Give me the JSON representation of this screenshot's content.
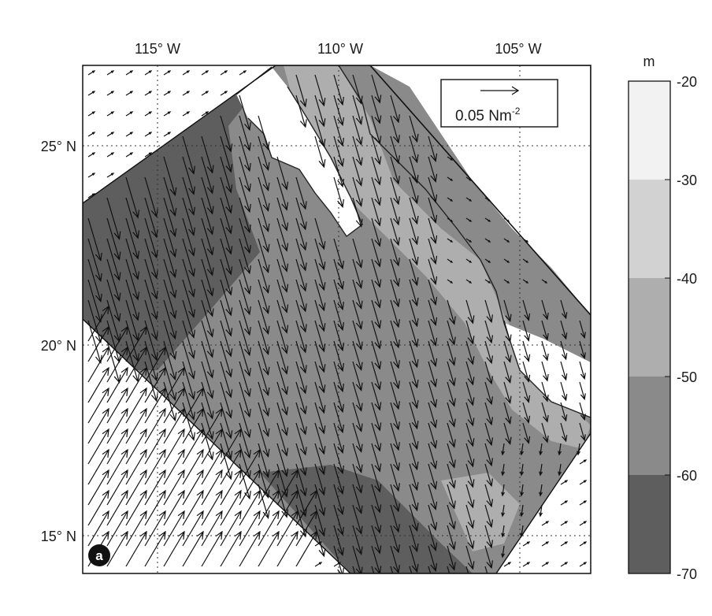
{
  "axes": {
    "lon_labels": [
      "115° W",
      "110° W",
      "105° W"
    ],
    "lat_labels": [
      "25° N",
      "20° N",
      "15° N"
    ]
  },
  "panel_label": "a",
  "vector_key": {
    "label_main": "0.05 Nm",
    "label_exp": "-2"
  },
  "colorbar": {
    "unit": "m",
    "ticks": [
      "-20",
      "-30",
      "-40",
      "-50",
      "-60",
      "-70"
    ],
    "colors": [
      "#f2f2f2",
      "#d2d2d2",
      "#aeaeae",
      "#8a8a8a",
      "#5e5e5e"
    ]
  }
}
